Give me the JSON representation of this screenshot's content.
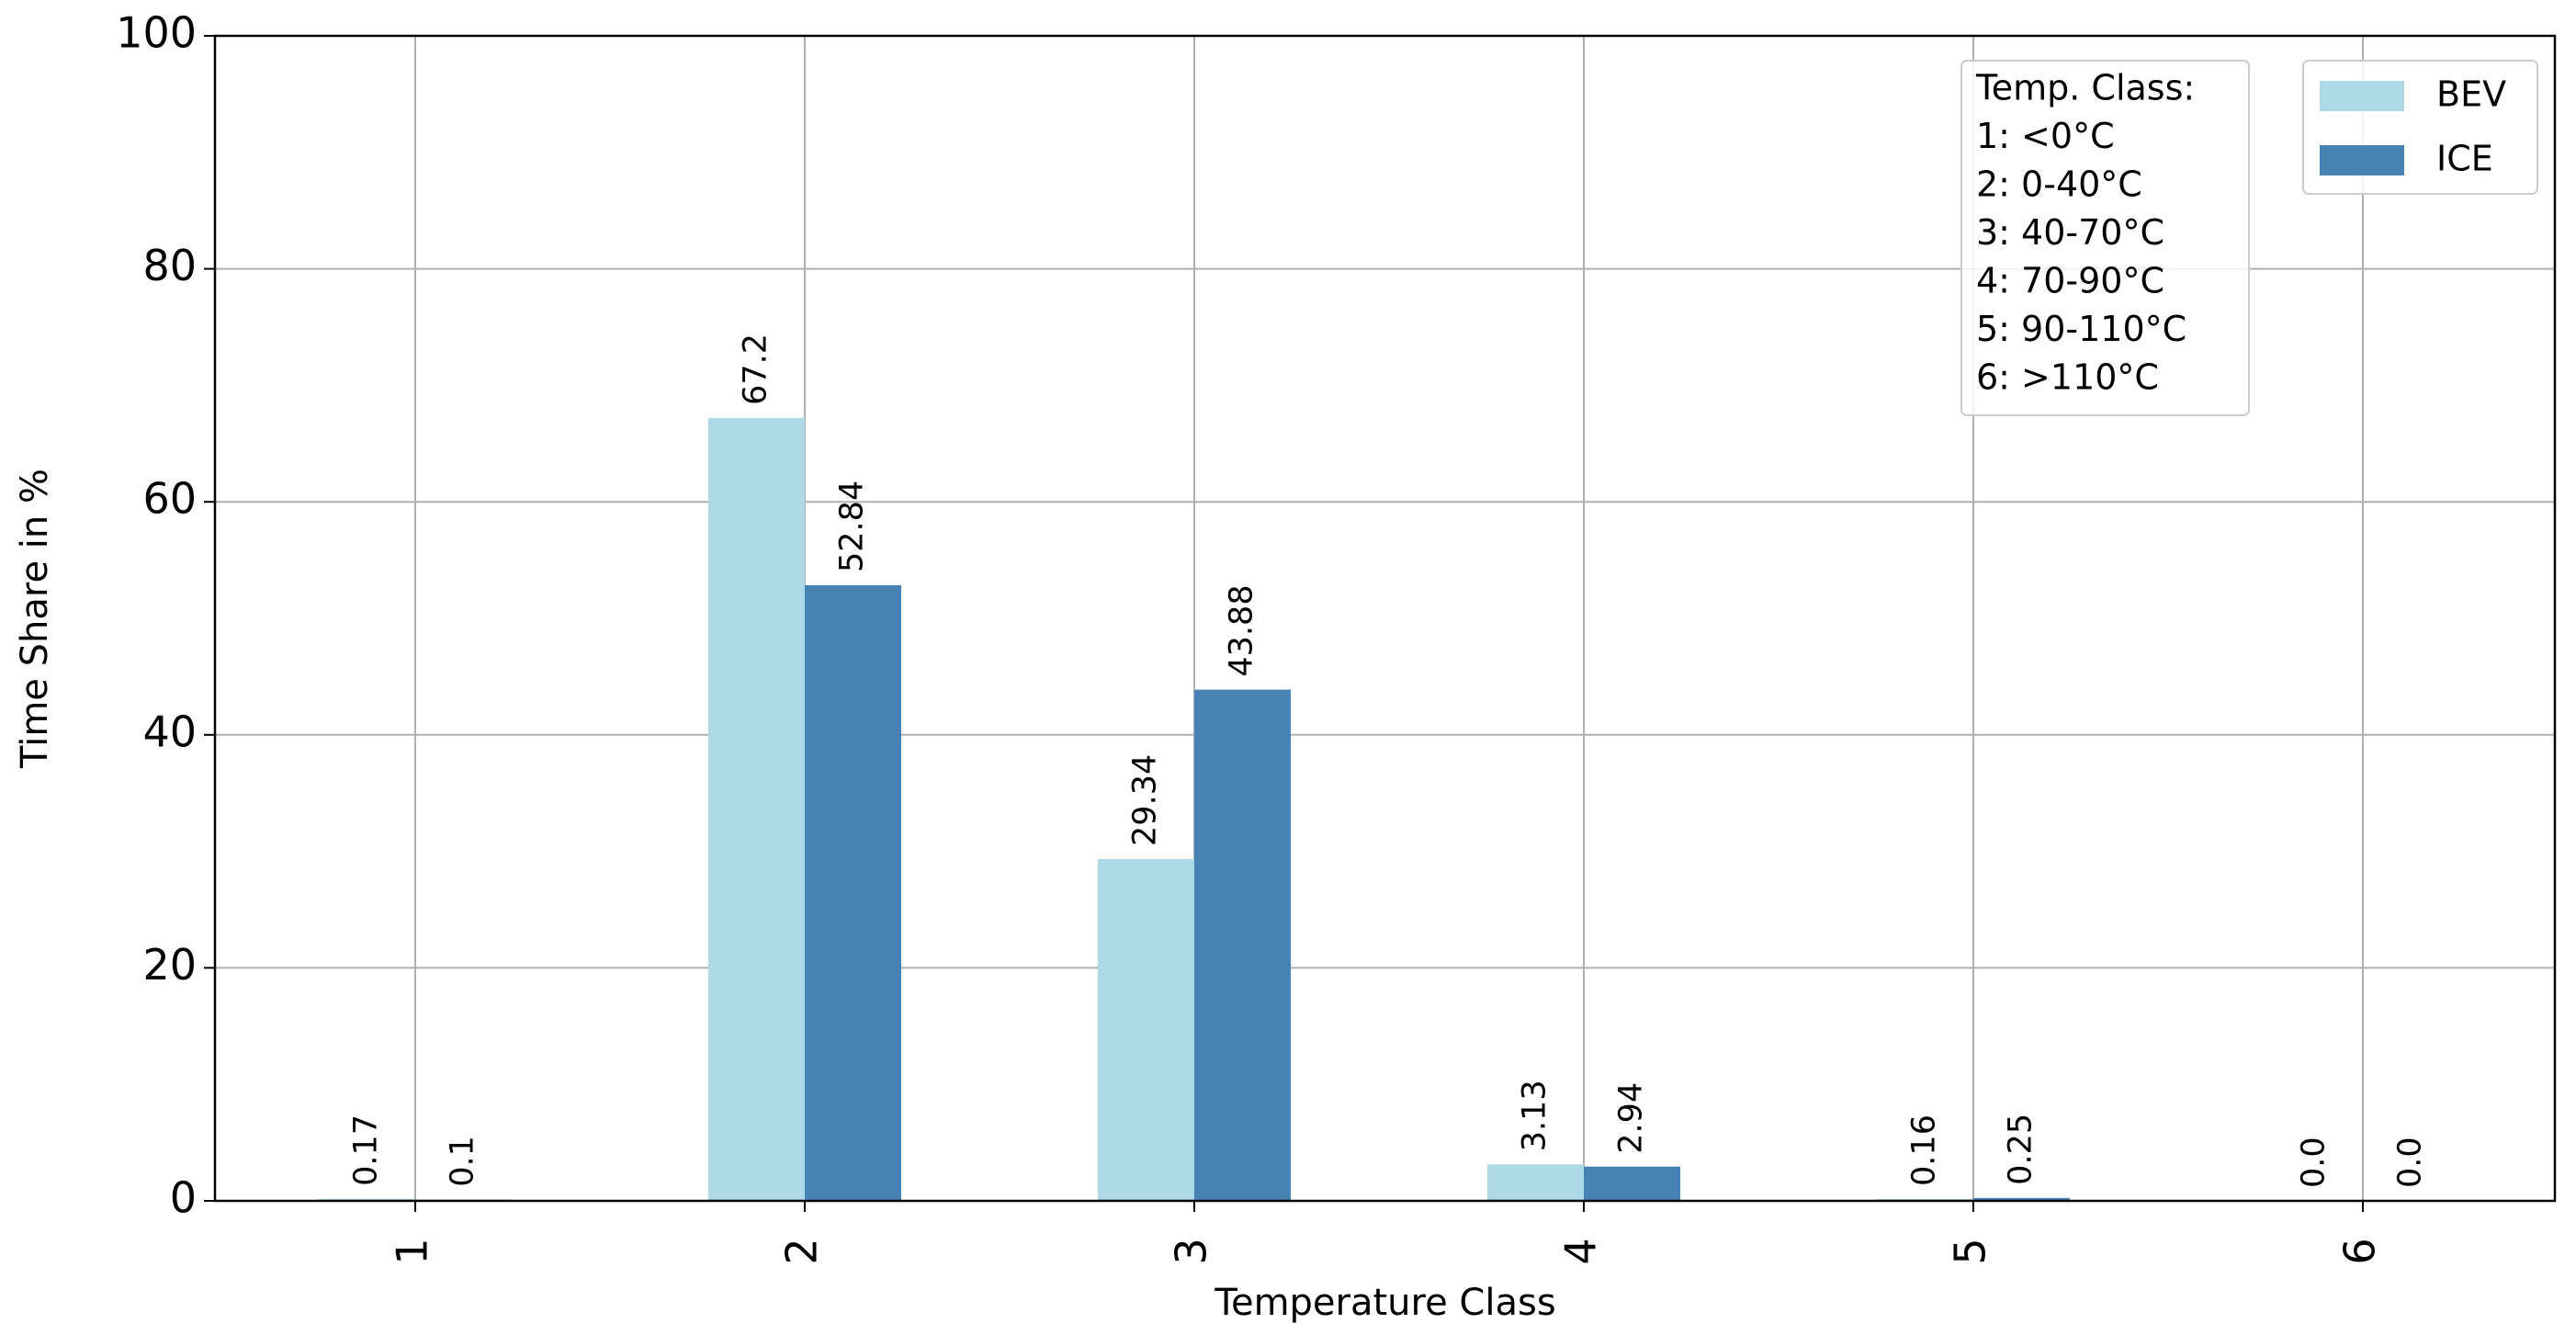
{
  "chart_data": {
    "type": "bar",
    "x_label": "Temperature Class",
    "y_label": "Time Share in %",
    "categories": [
      "1",
      "2",
      "3",
      "4",
      "5",
      "6"
    ],
    "series": [
      {
        "name": "BEV",
        "color": "#add8e6",
        "values": [
          0.17,
          67.2,
          29.34,
          3.13,
          0.16,
          0
        ],
        "value_labels": [
          "0.17",
          "67.2",
          "29.34",
          "3.13",
          "0.16",
          "0.0"
        ]
      },
      {
        "name": "ICE",
        "color": "#4682b4",
        "values": [
          0.1,
          52.84,
          43.88,
          2.94,
          0.25,
          0
        ],
        "value_labels": [
          "0.1",
          "52.84",
          "43.88",
          "2.94",
          "0.25",
          "0.0"
        ]
      }
    ],
    "ylim": [
      0,
      100
    ],
    "yticks": [
      0,
      20,
      40,
      60,
      80,
      100
    ],
    "grid": true,
    "legend_position": "upper right",
    "annotation": [
      "Temp. Class:",
      "1: <0°C",
      "2: 0-40°C",
      "3: 40-70°C",
      "4: 70-90°C",
      "5: 90-110°C",
      "6: >110°C"
    ]
  }
}
